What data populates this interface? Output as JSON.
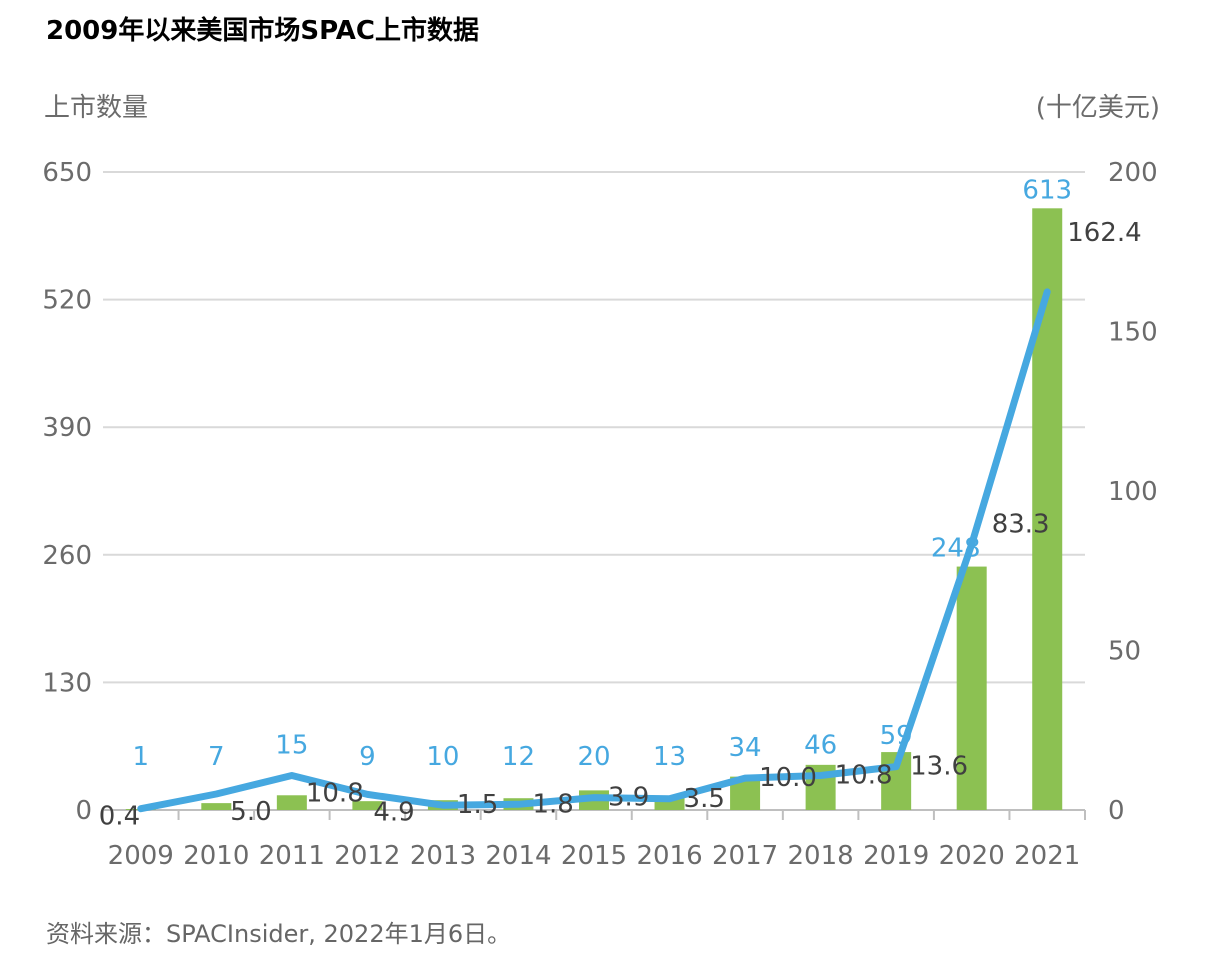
{
  "title": "2009年以来美国市场SPAC上市数据",
  "source": "资料来源：SPACInsider, 2022年1月6日。",
  "colors": {
    "bar": "#8cc152",
    "line": "#46a8e0",
    "grid": "#d9d9d9",
    "axis_text": "#6b6b6b",
    "amount_text": "#404040"
  },
  "chart_data": {
    "type": "bar",
    "categories": [
      "2009",
      "2010",
      "2011",
      "2012",
      "2013",
      "2014",
      "2015",
      "2016",
      "2017",
      "2018",
      "2019",
      "2020",
      "2021"
    ],
    "left_axis": {
      "label": "上市数量",
      "ticks": [
        "0",
        "130",
        "260",
        "390",
        "520",
        "650"
      ],
      "range": [
        0,
        650
      ]
    },
    "right_axis": {
      "label": "(十亿美元)",
      "ticks": [
        "0",
        "50",
        "100",
        "150",
        "200"
      ],
      "range": [
        0,
        200
      ]
    },
    "grid": true,
    "series": [
      {
        "type": "bar",
        "axis": "left",
        "values": [
          1,
          7,
          15,
          9,
          10,
          12,
          20,
          13,
          34,
          46,
          59,
          248,
          613
        ],
        "labels": [
          "1",
          "7",
          "15",
          "9",
          "10",
          "12",
          "20",
          "13",
          "34",
          "46",
          "59",
          "248",
          "613"
        ]
      },
      {
        "type": "line",
        "axis": "right",
        "values": [
          0.4,
          5.0,
          10.8,
          4.9,
          1.5,
          1.8,
          3.9,
          3.5,
          10.0,
          10.8,
          13.6,
          83.3,
          162.4
        ],
        "labels": [
          "0.4",
          "5.0",
          "10.8",
          "4.9",
          "1.5",
          "1.8",
          "3.9",
          "3.5",
          "10.0",
          "10.8",
          "13.6",
          "83.3",
          "162.4"
        ]
      }
    ]
  }
}
